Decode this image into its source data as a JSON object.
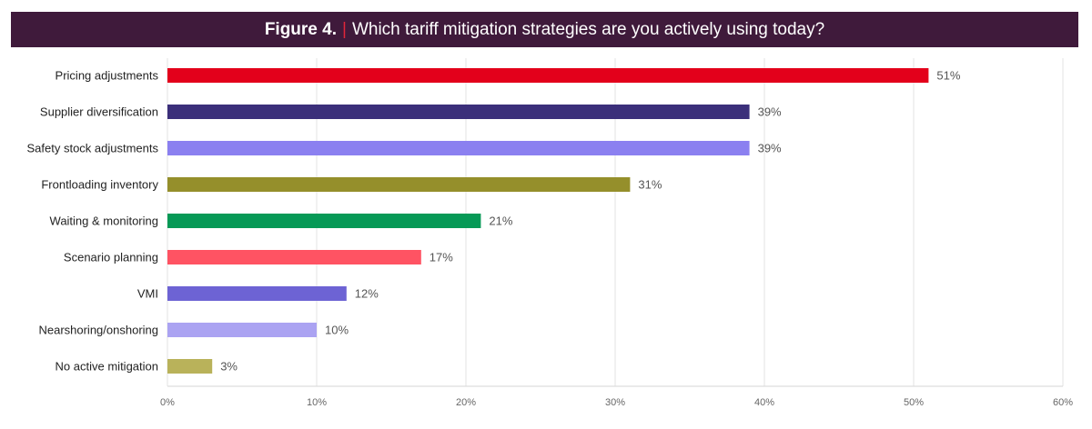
{
  "header": {
    "figure_label": "Figure 4.",
    "separator": "|",
    "question": "Which tariff mitigation strategies are you actively using today?"
  },
  "chart_data": {
    "type": "bar",
    "orientation": "horizontal",
    "categories": [
      "Pricing adjustments",
      "Supplier diversification",
      "Safety stock adjustments",
      "Frontloading inventory",
      "Waiting & monitoring",
      "Scenario planning",
      "VMI",
      "Nearshoring/onshoring",
      "No active mitigation"
    ],
    "values": [
      51,
      39,
      39,
      31,
      21,
      17,
      12,
      10,
      3
    ],
    "value_labels": [
      "51%",
      "39%",
      "39%",
      "31%",
      "21%",
      "17%",
      "12%",
      "10%",
      "3%"
    ],
    "colors": [
      "#e3001b",
      "#3b2f7a",
      "#8b80f0",
      "#958f2b",
      "#069956",
      "#ff5363",
      "#6d63d4",
      "#aba3f2",
      "#b9b25a"
    ],
    "xlim": [
      0,
      60
    ],
    "xticks": [
      0,
      10,
      20,
      30,
      40,
      50,
      60
    ],
    "xtick_labels": [
      "0%",
      "10%",
      "20%",
      "30%",
      "40%",
      "50%",
      "60%"
    ],
    "grid": true,
    "legend": "none",
    "title": "",
    "xlabel": "",
    "ylabel": ""
  }
}
